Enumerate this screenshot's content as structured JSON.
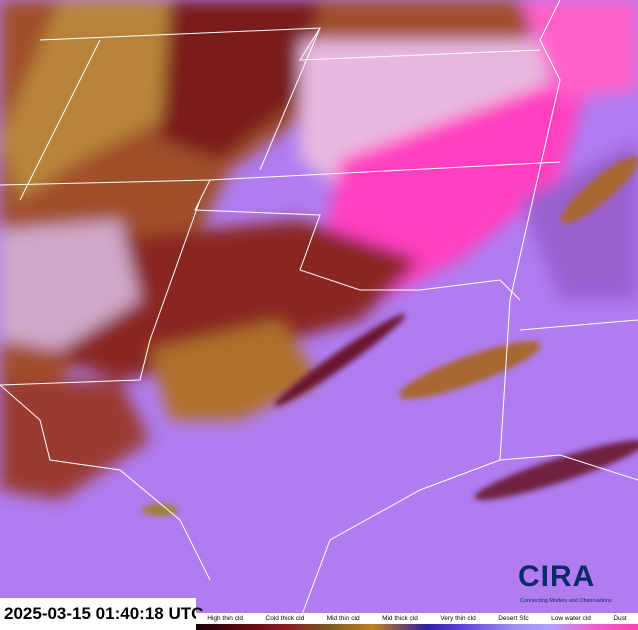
{
  "timestamp": "2025-03-15 01:40:18 UTC",
  "legend": {
    "labels": [
      "High thin cld",
      "Cold thick cld",
      "Mid thin cld",
      "Mid thick cld",
      "Very thin cld",
      "Desert Sfc",
      "Low water cld",
      "Dust"
    ]
  },
  "logo": {
    "name": "CIRA",
    "tagline": "Connecting Models and Observations"
  },
  "colors": {
    "background_sky": "#b07cf0",
    "dust": "#ff30c0",
    "thick_cloud": "#8a1a20",
    "mid_cloud": "#b06a2a",
    "boundaries": "#ffffff"
  }
}
